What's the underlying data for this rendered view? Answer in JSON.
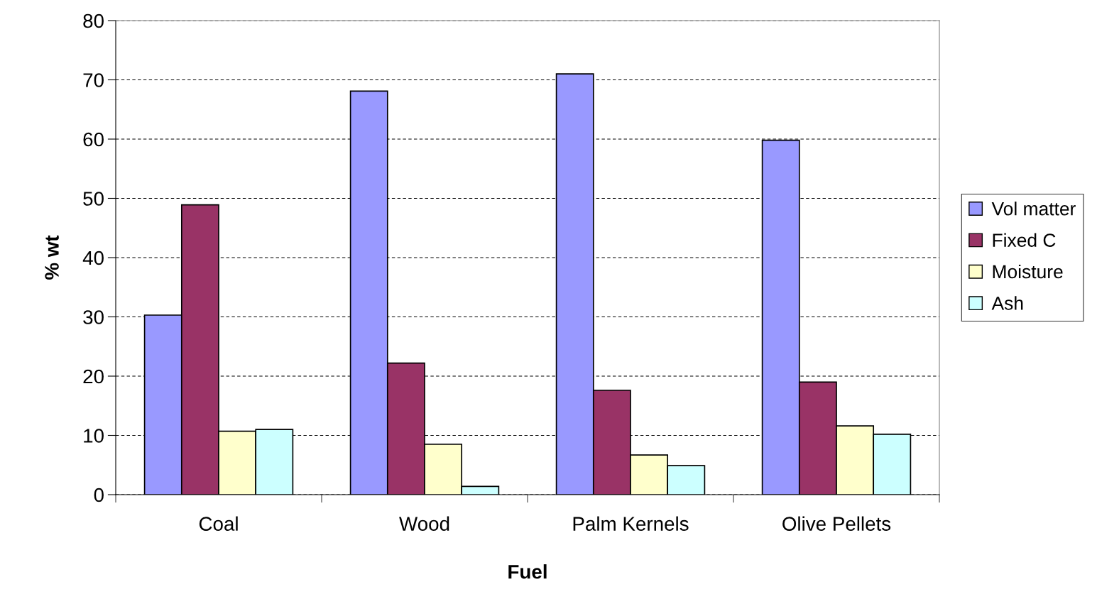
{
  "chart_data": {
    "type": "bar",
    "xlabel": "Fuel",
    "ylabel": "% wt",
    "categories": [
      "Coal",
      "Wood",
      "Palm Kernels",
      "Olive Pellets"
    ],
    "series": [
      {
        "name": "Vol matter",
        "color": "#9999ff",
        "values": [
          30.3,
          68.1,
          71.0,
          59.8
        ]
      },
      {
        "name": "Fixed C",
        "color": "#993366",
        "values": [
          48.9,
          22.2,
          17.6,
          19.0
        ]
      },
      {
        "name": "Moisture",
        "color": "#ffffcc",
        "values": [
          10.7,
          8.5,
          6.7,
          11.6
        ]
      },
      {
        "name": "Ash",
        "color": "#ccffff",
        "values": [
          11.0,
          1.4,
          4.9,
          10.2
        ]
      }
    ],
    "ylim": [
      0,
      80
    ],
    "yticks": [
      0,
      10,
      20,
      30,
      40,
      50,
      60,
      70,
      80
    ],
    "grid": "y",
    "legend": "right"
  }
}
